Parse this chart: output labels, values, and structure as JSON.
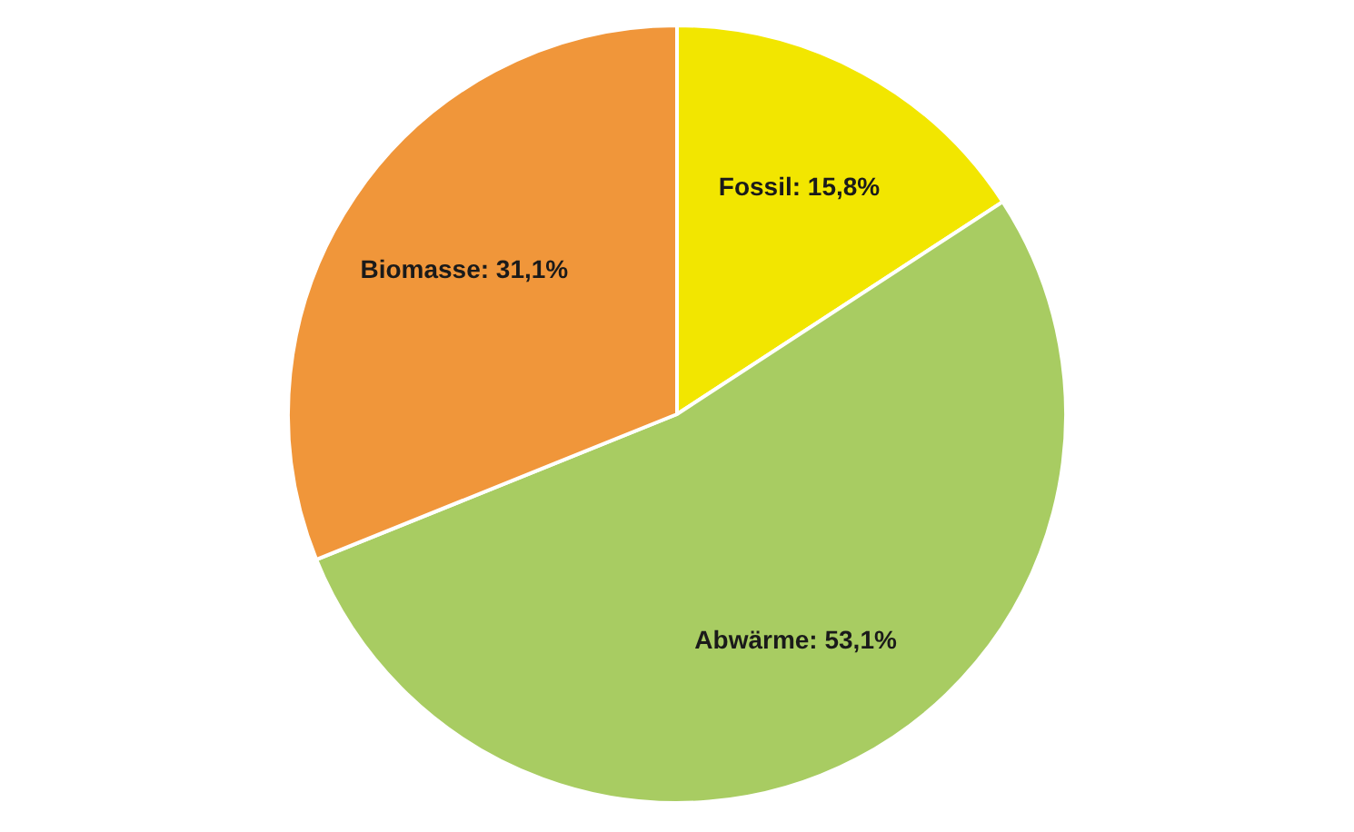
{
  "chart_data": {
    "type": "pie",
    "categories": [
      "Fossil",
      "Abwärme",
      "Biomasse"
    ],
    "values": [
      15.8,
      53.1,
      31.1
    ],
    "colors": [
      "#f2e600",
      "#a8cc62",
      "#f0963a"
    ],
    "value_labels": [
      "15,8%",
      "53,1%",
      "31,1%"
    ]
  }
}
